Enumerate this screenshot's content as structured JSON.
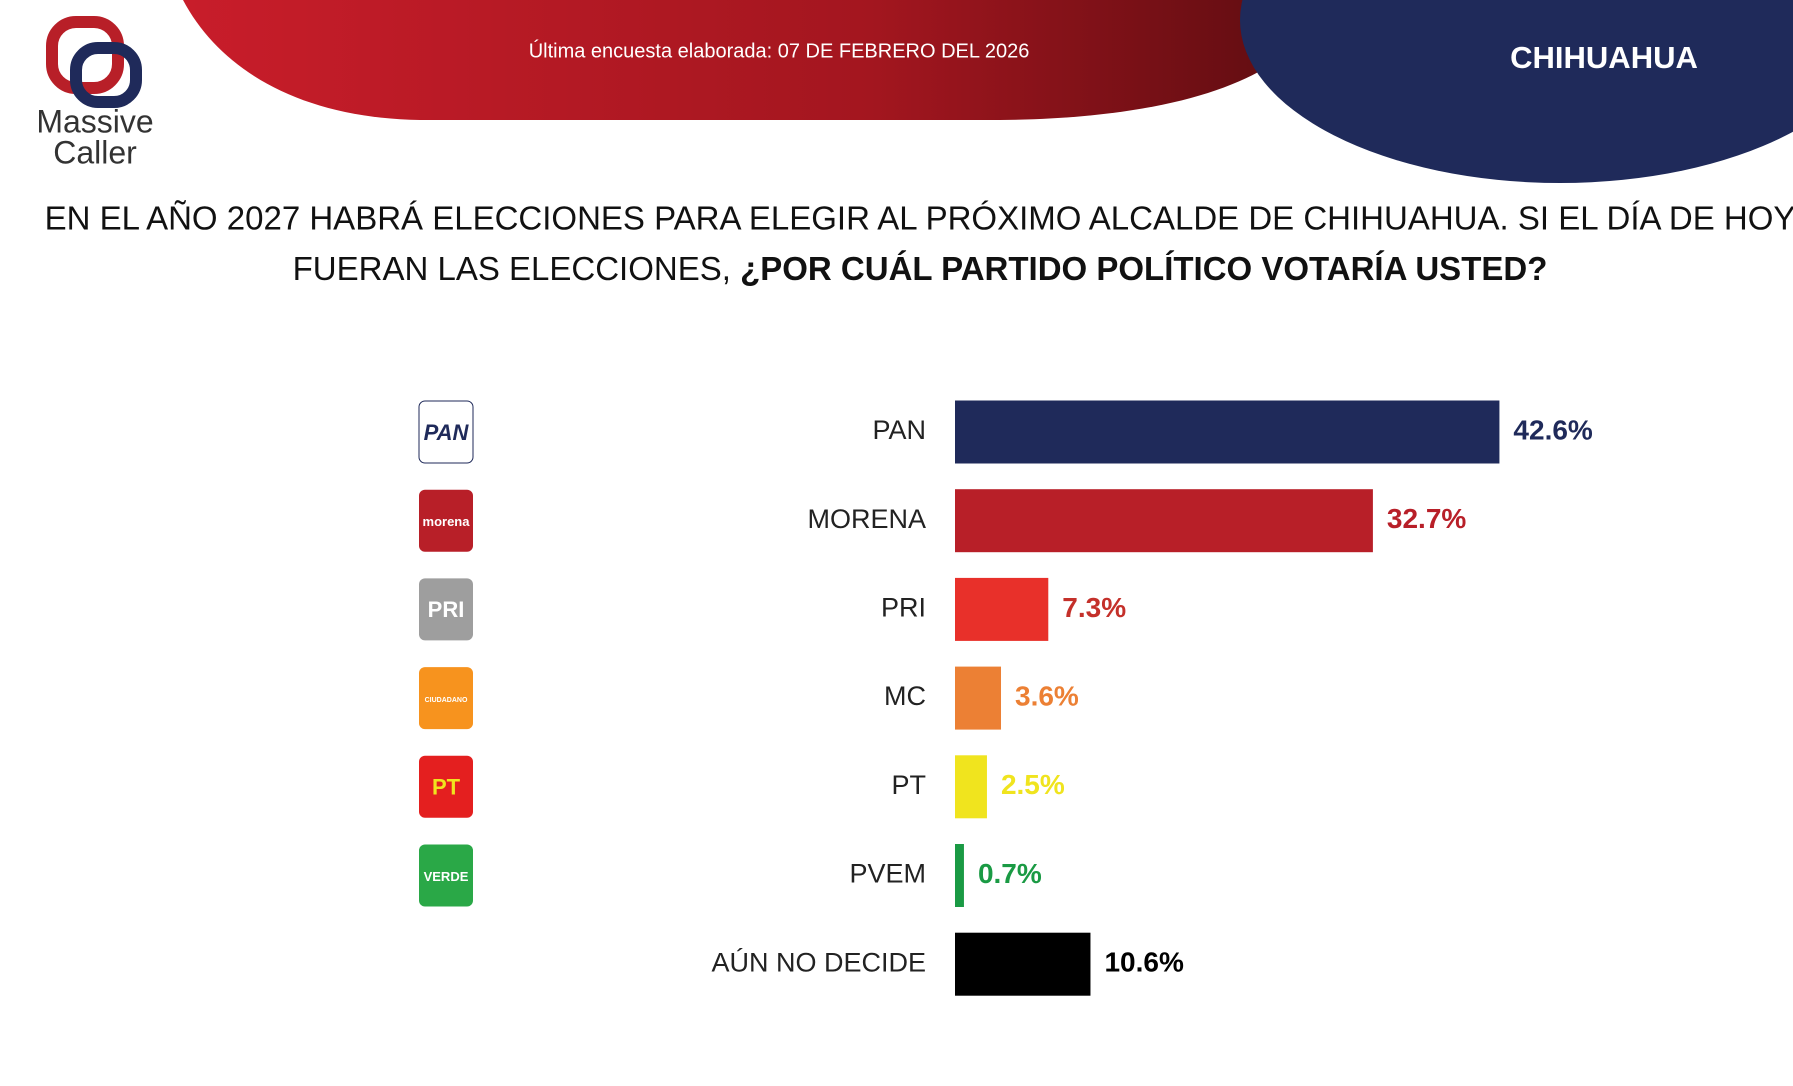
{
  "brand": {
    "name_line1": "Massive",
    "name_line2": "Caller"
  },
  "header": {
    "survey_date": "Última encuesta elaborada: 07 DE FEBRERO DEL 2026",
    "region": "CHIHUAHUA"
  },
  "chart_data": {
    "type": "hbar",
    "title_parts": [
      "EN EL AÑO 2027 HABRÁ ELECCIONES PARA ELEGIR AL PRÓXIMO ALCALDE DE CHIHUAHUA. SI EL DÍA DE HOY",
      "FUERAN LAS ELECCIONES,",
      "¿POR CUÁL PARTIDO POLÍTICO VOTARÍA USTED?"
    ],
    "categories": [
      "PAN",
      "MORENA",
      "PRI",
      "MC",
      "PT",
      "PVEM",
      "AÚN NO DECIDE"
    ],
    "values": [
      42.6,
      32.7,
      7.3,
      3.6,
      2.5,
      0.7,
      10.6
    ],
    "value_labels": [
      "42.6%",
      "32.7%",
      "7.3%",
      "3.6%",
      "2.5%",
      "0.7%",
      "10.6%"
    ],
    "colors": [
      "#1f2a5a",
      "#b81f28",
      "#e8302a",
      "#ec8034",
      "#f0e41e",
      "#1a9a44",
      "#000000"
    ],
    "label_colors": [
      "#1f2a5a",
      "#b81f28",
      "#c4302a",
      "#ec8034",
      "#f0e41e",
      "#1a9a44",
      "#000000"
    ],
    "icon_labels": [
      "PAN",
      "morena",
      "PRI",
      "CIUDADANO",
      "PT",
      "VERDE",
      null
    ],
    "icon_colors": [
      "#ffffff",
      "#b81f28",
      "#9e9e9e",
      "#f7931e",
      "#e41f1f",
      "#2aa847",
      null
    ]
  }
}
